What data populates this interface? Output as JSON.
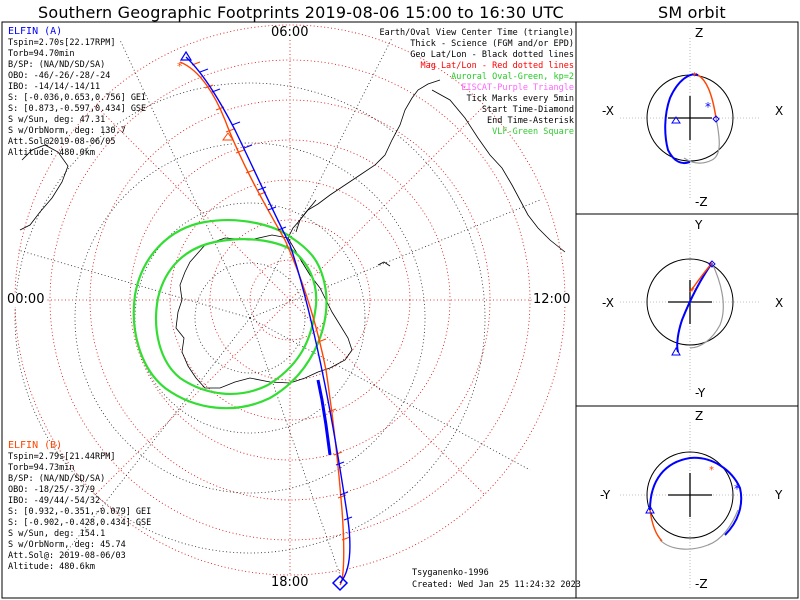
{
  "title": "Southern Geographic Footprints 2019-08-06 15:00 to 16:30 UTC",
  "sm_title": "SM orbit",
  "time_ticks": {
    "top": "06:00",
    "left": "00:00",
    "right": "12:00",
    "bottom": "18:00"
  },
  "elfin_a": {
    "name": "ELFIN (A)",
    "lines": [
      "Tspin=2.70s[22.17RPM]",
      "Torb=94.70min",
      "B/SP: (NA/ND/SD/SA)",
      "OBO: -46/-26/-28/-24",
      "IBO: -14/14/-14/11",
      "S: [-0.036,0.653,0.756] GEI",
      "S: [0.873,-0.597,0.434] GSE",
      "S w/Sun, deg: 47.31",
      "S w/OrbNorm, deg: 130.7",
      "Att.Sol@2019-08-06/05",
      "Altitude: 480.0km"
    ]
  },
  "elfin_b": {
    "name": "ELFIN (B)",
    "lines": [
      "Tspin=2.79s[21.44RPM]",
      "Torb=94.73min",
      "B/SP: (NA/ND/SD/SA)",
      "OBO: -18/25/-37/9",
      "IBO: -49/44/-54/32",
      "S: [0.932,-0.351,-0.079] GEI",
      "S: [-0.902,-0.428,0.434] GSE",
      "S w/Sun, deg: 154.1",
      "S w/OrbNorm, deg: 45.74",
      "Att.Sol@: 2019-08-06/03",
      "Altitude: 480.6km"
    ]
  },
  "legend": [
    {
      "text": "Earth/Oval View Center Time (triangle)",
      "color": "#000000"
    },
    {
      "text": "Thick - Science (FGM and/or EPD)",
      "color": "#000000"
    },
    {
      "text": "Geo Lat/Lon - Black dotted lines",
      "color": "#000000"
    },
    {
      "text": "Mag Lat/Lon - Red dotted lines",
      "color": "#ff0000"
    },
    {
      "text": "Auroral Oval-Green, kp=2",
      "color": "#22cc22"
    },
    {
      "text": "EISCAT-Purple Triangle",
      "color": "#ff66ff"
    },
    {
      "text": "Tick Marks every 5min",
      "color": "#000000"
    },
    {
      "text": "Start Time-Diamond",
      "color": "#000000"
    },
    {
      "text": "End Time-Asterisk",
      "color": "#000000"
    },
    {
      "text": "VLF-Green Square",
      "color": "#33cc33"
    }
  ],
  "credits": {
    "model": "Tsyganenko-1996",
    "created": "Created: Wed Jan 25 11:24:32 2023"
  },
  "sm_panels": [
    {
      "top": "Z",
      "bottom": "-Z",
      "left": "-X",
      "right": "X"
    },
    {
      "top": "Y",
      "bottom": "-Y",
      "left": "-X",
      "right": "X"
    },
    {
      "top": "Z",
      "bottom": "-Z",
      "left": "-Y",
      "right": "Y"
    }
  ],
  "colors": {
    "elfin_a": "#0000ff",
    "elfin_b": "#ff4500",
    "oval": "#33dd33",
    "grid_mag": "#ff0000",
    "grid_geo": "#000000"
  }
}
